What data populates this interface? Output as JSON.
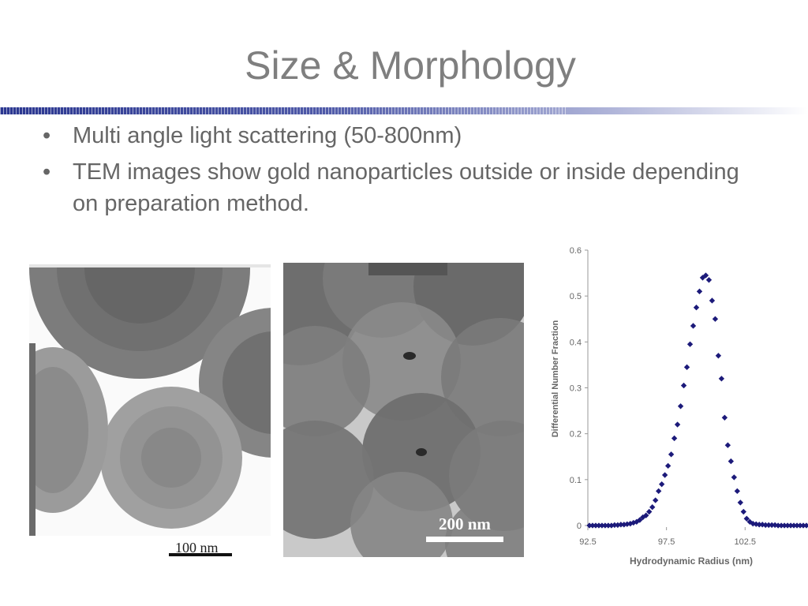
{
  "slide": {
    "title": "Size & Morphology",
    "bullets": [
      "Multi angle light scattering (50-800nm)",
      "TEM images show gold nanoparticles outside or inside depending on preparation method."
    ],
    "accent_color": "#2b3790"
  },
  "tem_images": [
    {
      "scale_label": "100 nm"
    },
    {
      "scale_label": "200 nm"
    }
  ],
  "chart_data": {
    "type": "scatter",
    "title": "",
    "xlabel": "Hydrodynamic Radius (nm)",
    "ylabel": "Differential Number Fraction",
    "xlim": [
      92.5,
      106.5
    ],
    "ylim": [
      0,
      0.6
    ],
    "x_ticks": [
      "92.5",
      "97.5",
      "102.5"
    ],
    "y_ticks": [
      "0",
      "0.1",
      "0.2",
      "0.3",
      "0.4",
      "0.5",
      "0.6"
    ],
    "marker_color": "#1c1a7a",
    "series": [
      {
        "x": [
          92.6,
          92.8,
          93.0,
          93.2,
          93.4,
          93.6,
          93.8,
          94.0,
          94.2,
          94.4,
          94.6,
          94.8,
          95.0,
          95.2,
          95.4,
          95.6,
          95.8,
          96.0,
          96.2,
          96.4,
          96.6,
          96.8,
          97.0,
          97.2,
          97.4,
          97.6,
          97.8,
          98.0,
          98.2,
          98.4,
          98.6,
          98.8,
          99.0,
          99.2,
          99.4,
          99.6,
          99.8,
          100.0,
          100.2,
          100.4,
          100.6,
          100.8,
          101.0,
          101.2,
          101.4,
          101.6,
          101.8,
          102.0,
          102.2,
          102.4,
          102.6,
          102.8,
          103.0,
          103.2,
          103.4,
          103.6,
          103.8,
          104.0,
          104.2,
          104.4,
          104.6,
          104.8,
          105.0,
          105.2,
          105.4,
          105.6,
          105.8,
          106.0,
          106.2,
          106.4
        ],
        "y": [
          0,
          0,
          0,
          0,
          0,
          0,
          0,
          0,
          0.001,
          0.001,
          0.002,
          0.002,
          0.003,
          0.004,
          0.006,
          0.008,
          0.012,
          0.018,
          0.022,
          0.03,
          0.04,
          0.055,
          0.075,
          0.09,
          0.11,
          0.13,
          0.155,
          0.19,
          0.22,
          0.26,
          0.305,
          0.345,
          0.395,
          0.435,
          0.475,
          0.51,
          0.54,
          0.545,
          0.535,
          0.49,
          0.45,
          0.37,
          0.32,
          0.235,
          0.175,
          0.14,
          0.105,
          0.075,
          0.05,
          0.03,
          0.015,
          0.008,
          0.004,
          0.003,
          0.002,
          0.002,
          0.001,
          0.001,
          0.001,
          0.001,
          0,
          0,
          0,
          0,
          0,
          0,
          0,
          0,
          0,
          0
        ]
      }
    ]
  }
}
